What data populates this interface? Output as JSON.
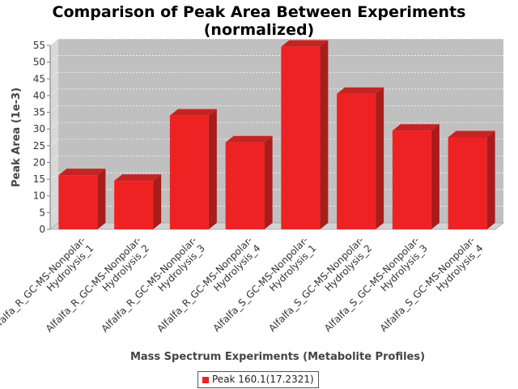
{
  "chart_data": {
    "type": "bar",
    "title": "Comparison of Peak Area Between Experiments",
    "subtitle": "(normalized)",
    "xlabel": "Mass Spectrum Experiments (Metabolite Profiles)",
    "ylabel": "Peak Area (1e-3)",
    "ylim": [
      0,
      55
    ],
    "yticks": [
      0,
      5,
      10,
      15,
      20,
      25,
      30,
      35,
      40,
      45,
      50,
      55
    ],
    "grid": true,
    "legend_position": "bottom",
    "categories": [
      [
        "Alfalfa_R_GC-MS-Nonpolar-",
        "Hydrolysis_1"
      ],
      [
        "Alfalfa_R_GC-MS-Nonpolar-",
        "Hydrolysis_2"
      ],
      [
        "Alfalfa_R_GC-MS-Nonpolar-",
        "Hydrolysis_3"
      ],
      [
        "Alfalfa_R_GC-MS-Nonpolar-",
        "Hydrolysis_4"
      ],
      [
        "Alfalfa_S_GC-MS-Nonpolar-",
        "Hydrolysis_1"
      ],
      [
        "Alfalfa_S_GC-MS-Nonpolar-",
        "Hydrolysis_2"
      ],
      [
        "Alfalfa_S_GC-MS-Nonpolar-",
        "Hydrolysis_3"
      ],
      [
        "Alfalfa_S_GC-MS-Nonpolar-",
        "Hydrolysis_4"
      ]
    ],
    "series": [
      {
        "name": "Peak 160.1(17.2321)",
        "color": "#ee2222",
        "values": [
          16.2,
          14.5,
          34.0,
          26.0,
          54.6,
          40.5,
          29.5,
          27.5
        ]
      }
    ]
  }
}
